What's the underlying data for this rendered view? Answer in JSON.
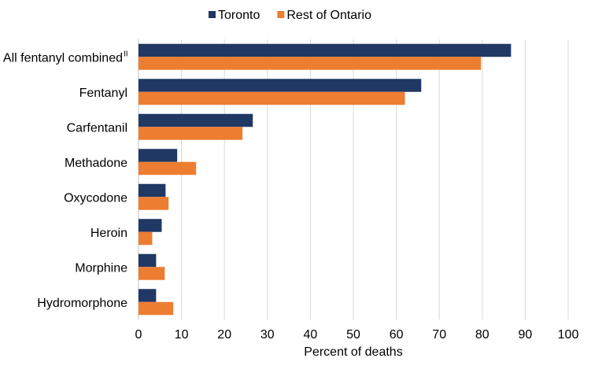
{
  "chart_data": {
    "type": "bar",
    "orientation": "horizontal",
    "categories": [
      "All fentanyl combined",
      "Fentanyl",
      "Carfentanil",
      "Methadone",
      "Oxycodone",
      "Heroin",
      "Morphine",
      "Hydromorphone"
    ],
    "category_superscripts": {
      "All fentanyl combined": "II"
    },
    "series": [
      {
        "name": "Toronto",
        "color": "#1f3864",
        "values": [
          86.7,
          65.8,
          26.6,
          9.0,
          6.3,
          5.4,
          4.1,
          4.1
        ]
      },
      {
        "name": "Rest of Ontario",
        "color": "#ed7d31",
        "values": [
          79.7,
          62.0,
          24.2,
          13.4,
          7.0,
          3.2,
          6.1,
          8.1
        ]
      }
    ],
    "xlabel": "Percent of deaths",
    "ylabel": "",
    "xlim": [
      0,
      100
    ],
    "xticks": [
      0,
      10,
      20,
      30,
      40,
      50,
      60,
      70,
      80,
      90,
      100
    ],
    "grid": "vertical",
    "legend": "top-center"
  }
}
